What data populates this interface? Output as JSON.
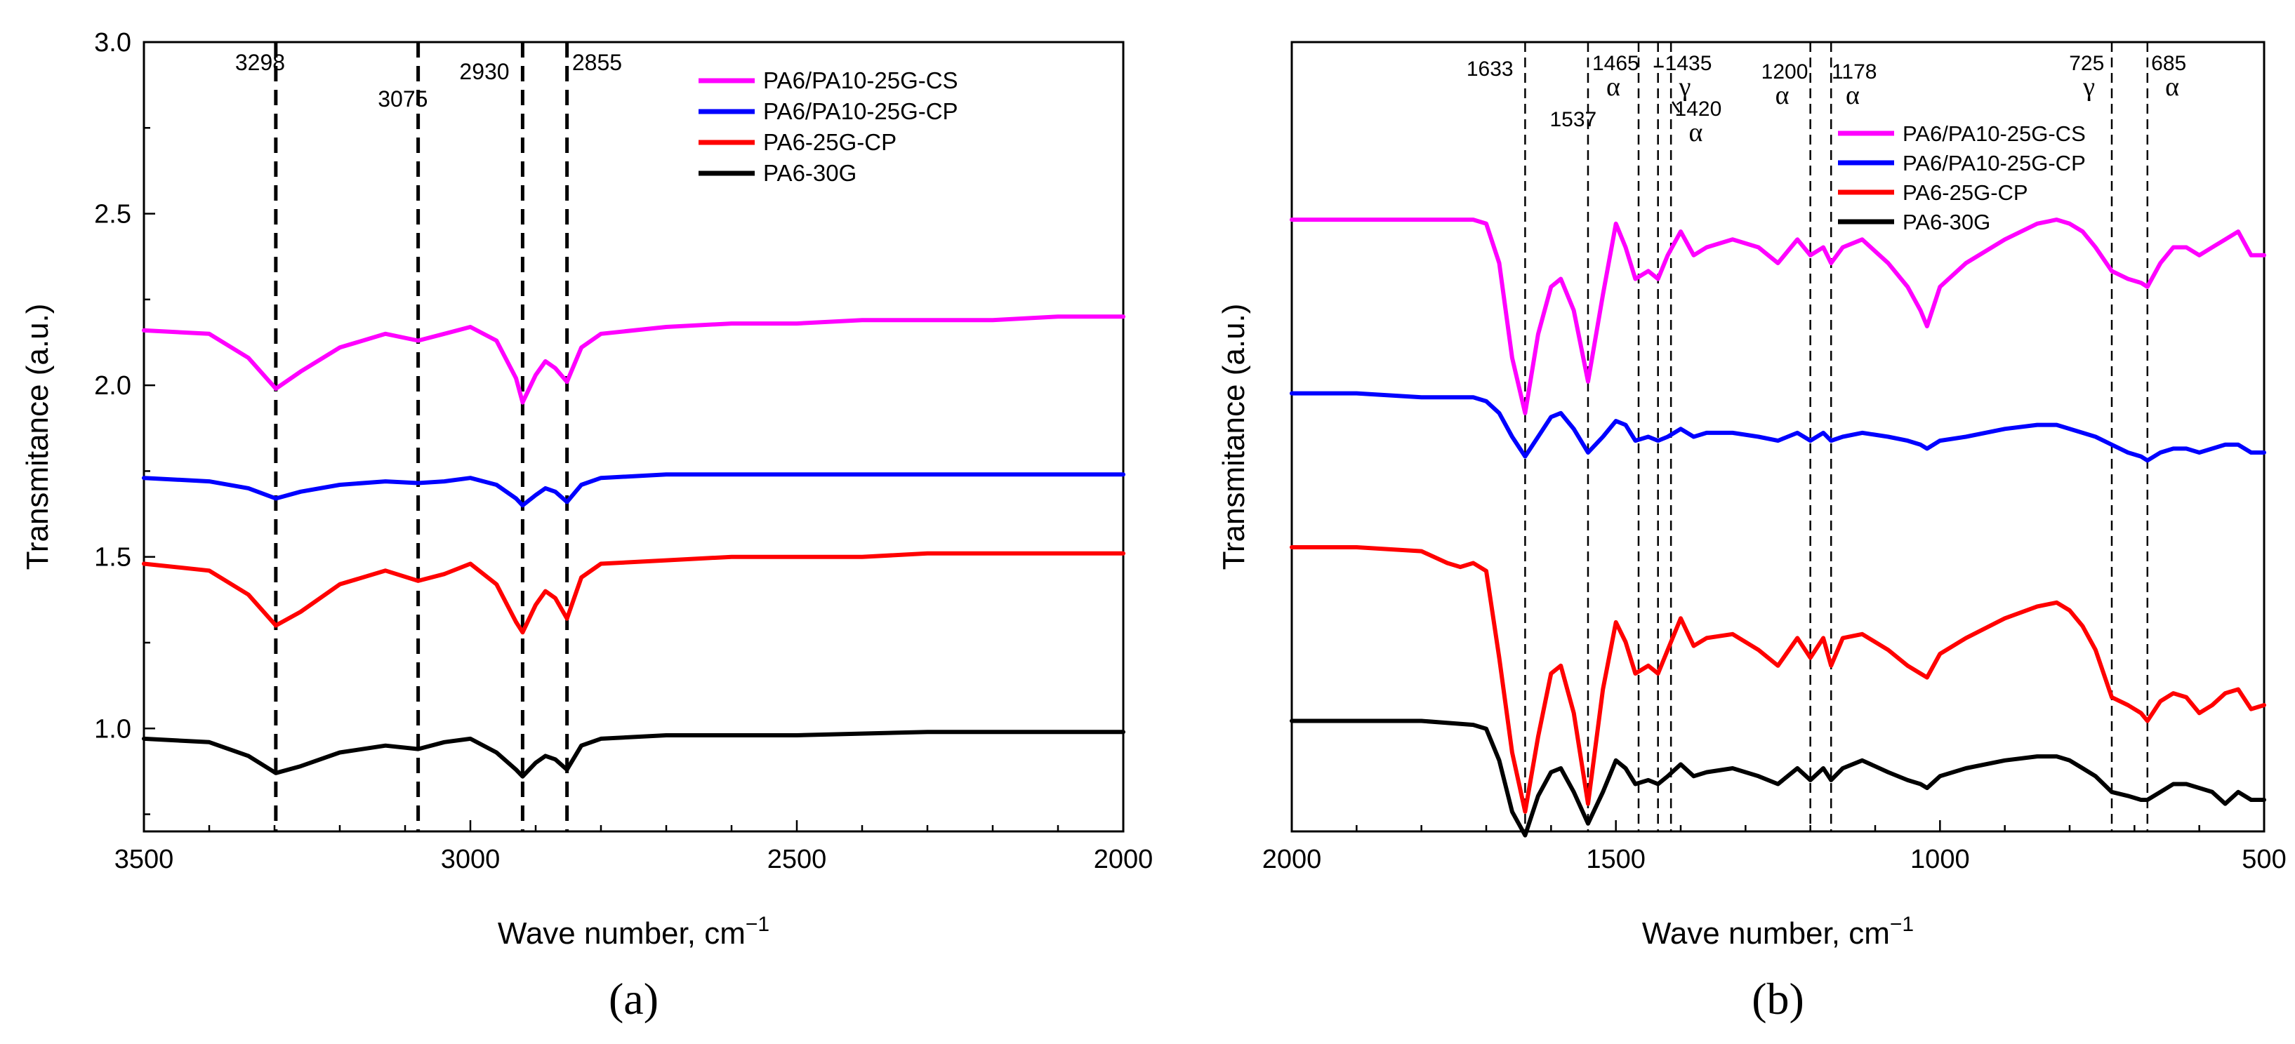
{
  "chart_data": [
    {
      "type": "line",
      "panel_label": "(a)",
      "xlabel": "Wave number, cm",
      "xlabel_sup": "−1",
      "ylabel": "Transmitance (a.u.)",
      "xlim": [
        3500,
        2000
      ],
      "ylim": [
        0.7,
        3.0
      ],
      "x_ticks": [
        3500,
        3000,
        2500,
        2000
      ],
      "y_ticks": [
        1.0,
        1.5,
        2.0,
        2.5,
        3.0
      ],
      "y_tick_labels": [
        "1.0",
        "1.5",
        "2.0",
        "2.5",
        "3.0"
      ],
      "grid": false,
      "legend_position": "top-right",
      "annotations": [
        {
          "text": "3298",
          "x": 3298
        },
        {
          "text": "3075",
          "x": 3075
        },
        {
          "text": "2930",
          "x": 2920
        },
        {
          "text": "2855",
          "x": 2855
        }
      ],
      "vlines": [
        3298,
        3080,
        2920,
        2852
      ],
      "series": [
        {
          "name": "PA6/PA10-25G-CS",
          "color": "#ff00ff",
          "x": [
            3500,
            3400,
            3340,
            3298,
            3260,
            3200,
            3130,
            3080,
            3040,
            3000,
            2960,
            2930,
            2920,
            2900,
            2885,
            2870,
            2852,
            2830,
            2800,
            2700,
            2600,
            2500,
            2400,
            2300,
            2200,
            2100,
            2000
          ],
          "y": [
            2.16,
            2.15,
            2.08,
            1.99,
            2.04,
            2.11,
            2.15,
            2.13,
            2.15,
            2.17,
            2.13,
            2.02,
            1.95,
            2.03,
            2.07,
            2.05,
            2.01,
            2.11,
            2.15,
            2.17,
            2.18,
            2.18,
            2.19,
            2.19,
            2.19,
            2.2,
            2.2
          ]
        },
        {
          "name": "PA6/PA10-25G-CP",
          "color": "#0000ff",
          "x": [
            3500,
            3400,
            3340,
            3298,
            3260,
            3200,
            3130,
            3080,
            3040,
            3000,
            2960,
            2930,
            2920,
            2900,
            2885,
            2870,
            2852,
            2830,
            2800,
            2700,
            2500,
            2300,
            2000
          ],
          "y": [
            1.73,
            1.72,
            1.7,
            1.67,
            1.69,
            1.71,
            1.72,
            1.715,
            1.72,
            1.73,
            1.71,
            1.67,
            1.65,
            1.68,
            1.7,
            1.69,
            1.66,
            1.71,
            1.73,
            1.74,
            1.74,
            1.74,
            1.74
          ]
        },
        {
          "name": "PA6-25G-CP",
          "color": "#ff0000",
          "x": [
            3500,
            3400,
            3340,
            3298,
            3260,
            3200,
            3130,
            3080,
            3040,
            3000,
            2960,
            2930,
            2920,
            2900,
            2885,
            2870,
            2852,
            2830,
            2800,
            2700,
            2600,
            2500,
            2400,
            2300,
            2200,
            2000
          ],
          "y": [
            1.48,
            1.46,
            1.39,
            1.3,
            1.34,
            1.42,
            1.46,
            1.43,
            1.45,
            1.48,
            1.42,
            1.31,
            1.28,
            1.36,
            1.4,
            1.38,
            1.32,
            1.44,
            1.48,
            1.49,
            1.5,
            1.5,
            1.5,
            1.51,
            1.51,
            1.51
          ]
        },
        {
          "name": "PA6-30G",
          "color": "#000000",
          "x": [
            3500,
            3400,
            3340,
            3298,
            3260,
            3200,
            3130,
            3080,
            3040,
            3000,
            2960,
            2930,
            2920,
            2900,
            2885,
            2870,
            2852,
            2830,
            2800,
            2700,
            2500,
            2300,
            2000
          ],
          "y": [
            0.97,
            0.96,
            0.92,
            0.87,
            0.89,
            0.93,
            0.95,
            0.94,
            0.96,
            0.97,
            0.93,
            0.88,
            0.86,
            0.9,
            0.92,
            0.91,
            0.88,
            0.95,
            0.97,
            0.98,
            0.98,
            0.99,
            0.99
          ]
        }
      ]
    },
    {
      "type": "line",
      "panel_label": "(b)",
      "xlabel": "Wave number, cm",
      "xlabel_sup": "−1",
      "ylabel": "Transmitance (a.u.)",
      "xlim": [
        2000,
        500
      ],
      "ylim": [
        0.0,
        1.0
      ],
      "x_ticks": [
        2000,
        1500,
        1000,
        500
      ],
      "y_ticks": [],
      "grid": false,
      "legend_position": "top-right",
      "annotations": [
        {
          "text": "1633",
          "x": 1633
        },
        {
          "text": "1537",
          "x": 1537
        },
        {
          "text": "1465",
          "x": 1465,
          "sub": "α"
        },
        {
          "text": "1435",
          "x": 1435,
          "sub": "γ"
        },
        {
          "text": "1420",
          "x": 1420,
          "sub": "α"
        },
        {
          "text": "1200",
          "x": 1200,
          "sub": "α"
        },
        {
          "text": "1178",
          "x": 1178,
          "sub": "α"
        },
        {
          "text": "725",
          "x": 725,
          "sub": "γ"
        },
        {
          "text": "685",
          "x": 685,
          "sub": "α"
        }
      ],
      "vlines": [
        1640,
        1543,
        1465,
        1435,
        1415,
        1200,
        1168,
        735,
        680
      ],
      "series": [
        {
          "name": "PA6/PA10-25G-CS",
          "color": "#ff00ff",
          "x": [
            2000,
            1900,
            1800,
            1720,
            1700,
            1680,
            1660,
            1640,
            1620,
            1600,
            1585,
            1565,
            1543,
            1520,
            1500,
            1485,
            1470,
            1450,
            1435,
            1420,
            1400,
            1380,
            1360,
            1320,
            1280,
            1250,
            1220,
            1200,
            1180,
            1168,
            1150,
            1120,
            1080,
            1050,
            1030,
            1020,
            1000,
            960,
            900,
            850,
            820,
            800,
            780,
            760,
            735,
            710,
            690,
            680,
            660,
            640,
            620,
            600,
            580,
            560,
            540,
            520,
            500
          ],
          "y": [
            0.775,
            0.775,
            0.775,
            0.775,
            0.77,
            0.72,
            0.6,
            0.53,
            0.63,
            0.69,
            0.7,
            0.66,
            0.57,
            0.68,
            0.77,
            0.74,
            0.7,
            0.71,
            0.7,
            0.73,
            0.76,
            0.73,
            0.74,
            0.75,
            0.74,
            0.72,
            0.75,
            0.73,
            0.74,
            0.72,
            0.74,
            0.75,
            0.72,
            0.69,
            0.66,
            0.64,
            0.69,
            0.72,
            0.75,
            0.77,
            0.775,
            0.77,
            0.76,
            0.74,
            0.71,
            0.7,
            0.695,
            0.69,
            0.72,
            0.74,
            0.74,
            0.73,
            0.74,
            0.75,
            0.76,
            0.73,
            0.73
          ]
        },
        {
          "name": "PA6/PA10-25G-CP",
          "color": "#0000ff",
          "x": [
            2000,
            1900,
            1800,
            1720,
            1700,
            1680,
            1660,
            1640,
            1620,
            1600,
            1585,
            1565,
            1543,
            1520,
            1500,
            1485,
            1470,
            1450,
            1435,
            1420,
            1400,
            1380,
            1360,
            1320,
            1280,
            1250,
            1220,
            1200,
            1180,
            1168,
            1150,
            1120,
            1080,
            1050,
            1030,
            1020,
            1000,
            960,
            900,
            850,
            820,
            800,
            780,
            760,
            735,
            710,
            690,
            680,
            660,
            640,
            620,
            600,
            580,
            560,
            540,
            520,
            500
          ],
          "y": [
            0.555,
            0.555,
            0.55,
            0.55,
            0.545,
            0.53,
            0.5,
            0.475,
            0.5,
            0.525,
            0.53,
            0.51,
            0.48,
            0.5,
            0.52,
            0.515,
            0.495,
            0.5,
            0.495,
            0.5,
            0.51,
            0.5,
            0.505,
            0.505,
            0.5,
            0.495,
            0.505,
            0.495,
            0.505,
            0.495,
            0.5,
            0.505,
            0.5,
            0.495,
            0.49,
            0.485,
            0.495,
            0.5,
            0.51,
            0.515,
            0.515,
            0.51,
            0.505,
            0.5,
            0.49,
            0.48,
            0.475,
            0.47,
            0.48,
            0.485,
            0.485,
            0.48,
            0.485,
            0.49,
            0.49,
            0.48,
            0.48
          ]
        },
        {
          "name": "PA6-25G-CP",
          "color": "#ff0000",
          "x": [
            2000,
            1900,
            1800,
            1760,
            1740,
            1720,
            1700,
            1680,
            1660,
            1640,
            1620,
            1600,
            1585,
            1565,
            1543,
            1520,
            1500,
            1485,
            1470,
            1450,
            1435,
            1420,
            1400,
            1380,
            1360,
            1320,
            1280,
            1250,
            1220,
            1200,
            1180,
            1168,
            1150,
            1120,
            1080,
            1050,
            1030,
            1020,
            1000,
            960,
            900,
            850,
            820,
            800,
            780,
            760,
            735,
            710,
            690,
            680,
            660,
            640,
            620,
            600,
            580,
            560,
            540,
            520,
            500
          ],
          "y": [
            0.36,
            0.36,
            0.355,
            0.34,
            0.335,
            0.34,
            0.33,
            0.22,
            0.1,
            0.025,
            0.12,
            0.2,
            0.21,
            0.15,
            0.035,
            0.18,
            0.265,
            0.24,
            0.2,
            0.21,
            0.2,
            0.23,
            0.27,
            0.235,
            0.245,
            0.25,
            0.23,
            0.21,
            0.245,
            0.22,
            0.245,
            0.21,
            0.245,
            0.25,
            0.23,
            0.21,
            0.2,
            0.195,
            0.225,
            0.245,
            0.27,
            0.285,
            0.29,
            0.28,
            0.26,
            0.23,
            0.17,
            0.16,
            0.15,
            0.14,
            0.165,
            0.175,
            0.17,
            0.15,
            0.16,
            0.175,
            0.18,
            0.155,
            0.16
          ]
        },
        {
          "name": "PA6-30G",
          "color": "#000000",
          "x": [
            2000,
            1900,
            1800,
            1720,
            1700,
            1680,
            1660,
            1640,
            1620,
            1600,
            1585,
            1565,
            1543,
            1520,
            1500,
            1485,
            1470,
            1450,
            1435,
            1420,
            1400,
            1380,
            1360,
            1320,
            1280,
            1250,
            1220,
            1200,
            1180,
            1168,
            1150,
            1120,
            1080,
            1050,
            1030,
            1020,
            1000,
            960,
            900,
            850,
            820,
            800,
            780,
            760,
            735,
            710,
            690,
            680,
            660,
            640,
            620,
            600,
            580,
            560,
            540,
            520,
            500
          ],
          "y": [
            0.14,
            0.14,
            0.14,
            0.135,
            0.13,
            0.09,
            0.025,
            -0.005,
            0.045,
            0.075,
            0.08,
            0.05,
            0.01,
            0.05,
            0.09,
            0.08,
            0.06,
            0.065,
            0.06,
            0.07,
            0.085,
            0.07,
            0.075,
            0.08,
            0.07,
            0.06,
            0.08,
            0.065,
            0.08,
            0.065,
            0.08,
            0.09,
            0.075,
            0.065,
            0.06,
            0.055,
            0.07,
            0.08,
            0.09,
            0.095,
            0.095,
            0.09,
            0.08,
            0.07,
            0.05,
            0.045,
            0.04,
            0.04,
            0.05,
            0.06,
            0.06,
            0.055,
            0.05,
            0.035,
            0.05,
            0.04,
            0.04
          ]
        }
      ]
    }
  ]
}
